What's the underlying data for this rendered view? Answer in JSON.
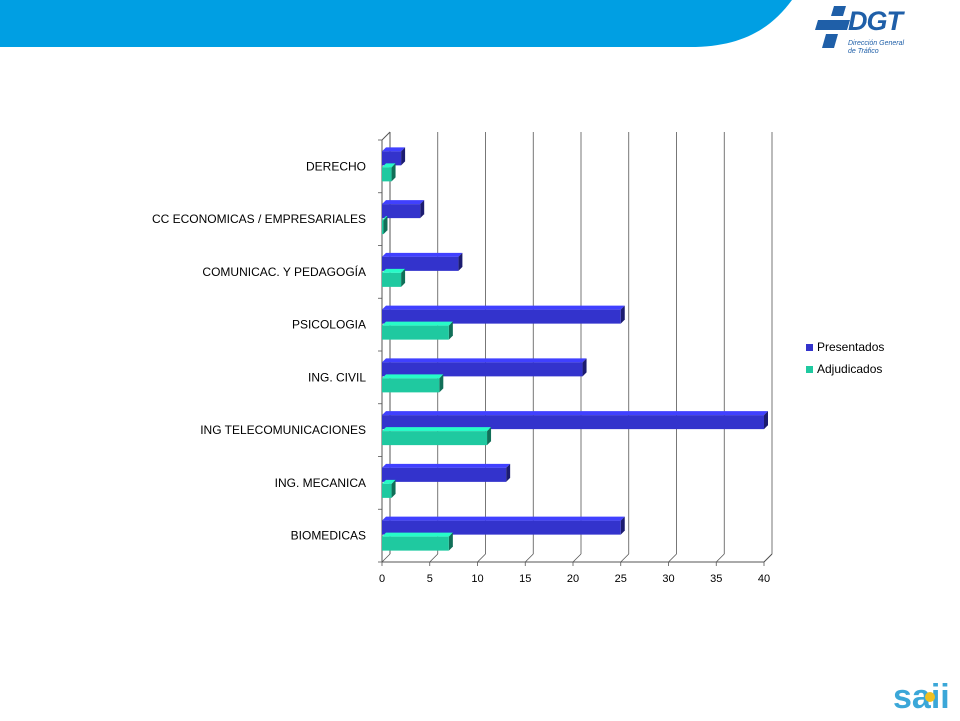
{
  "colors": {
    "banner": "#009fe3",
    "presentados": "#3333cc",
    "adjudicados": "#1fc9a0",
    "logo_blue": "#1f5fa8"
  },
  "logos": {
    "dgt_word": "DGT",
    "dgt_subtitle_line1": "Dirección General",
    "dgt_subtitle_line2": "de Tráfico",
    "saii_word": "saii"
  },
  "chart_data": {
    "type": "bar",
    "orientation": "horizontal",
    "categories": [
      "DERECHO",
      "CC ECONOMICAS / EMPRESARIALES",
      "COMUNICAC. Y PEDAGOGÍA",
      "PSICOLOGIA",
      "ING. CIVIL",
      "ING TELECOMUNICACIONES",
      "ING. MECANICA",
      "BIOMEDICAS"
    ],
    "series": [
      {
        "name": "Presentados",
        "values": [
          2,
          4,
          8,
          25,
          21,
          40,
          13,
          25
        ]
      },
      {
        "name": "Adjudicados",
        "values": [
          1,
          0,
          2,
          7,
          6,
          11,
          1,
          7
        ]
      }
    ],
    "xlim": [
      0,
      40
    ],
    "xticks": [
      0,
      5,
      10,
      15,
      20,
      25,
      30,
      35,
      40
    ],
    "grid": true,
    "legend_position": "right"
  }
}
